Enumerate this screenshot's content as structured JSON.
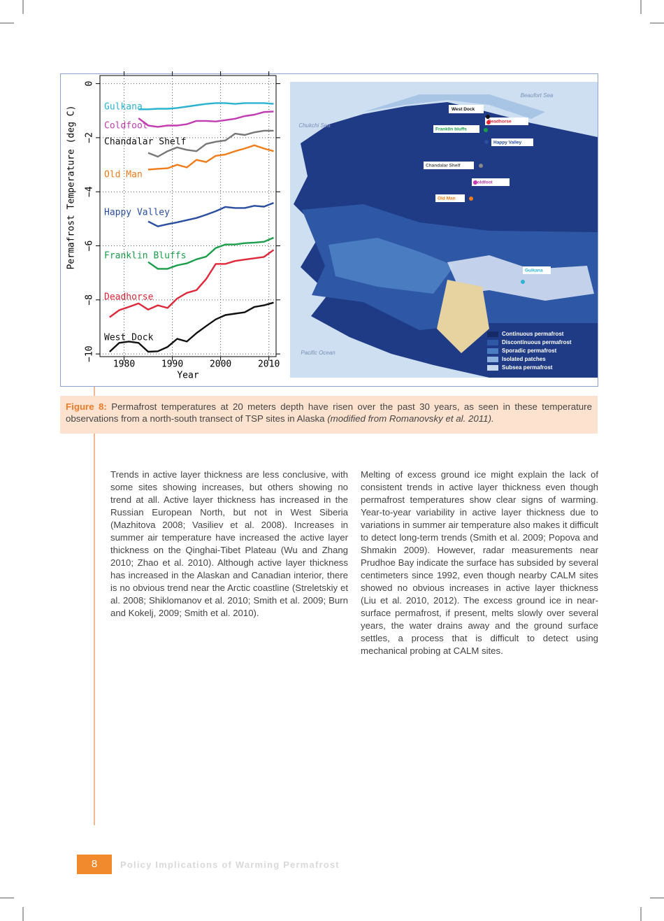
{
  "chart_data": {
    "type": "line",
    "ylabel": "Permafrost Temperature (deg C)",
    "xlabel": "Year",
    "x": [
      1977,
      1979,
      1981,
      1983,
      1985,
      1987,
      1989,
      1991,
      1993,
      1995,
      1997,
      1999,
      2001,
      2003,
      2005,
      2007,
      2009,
      2011
    ],
    "xlim": [
      1975,
      2011.5
    ],
    "xticks": [
      1980,
      1990,
      2000,
      2010
    ],
    "ylim": [
      -10.1,
      0.3
    ],
    "yticks": [
      {
        "value": -10,
        "label": "−10"
      },
      {
        "value": -8,
        "label": "−8"
      },
      {
        "value": -6,
        "label": "−6"
      },
      {
        "value": -4,
        "label": "−4"
      },
      {
        "value": -2,
        "label": "−2"
      },
      0
    ],
    "grid": true,
    "series": [
      {
        "name": "Gulkana",
        "color": "#2bb3d1",
        "values": [
          null,
          null,
          null,
          -0.95,
          -0.95,
          -0.93,
          -0.93,
          -0.9,
          -0.85,
          -0.8,
          -0.75,
          -0.72,
          -0.72,
          -0.75,
          -0.72,
          -0.72,
          -0.72,
          -0.75
        ]
      },
      {
        "name": "Coldfoot",
        "color": "#c23db1",
        "values": [
          null,
          null,
          null,
          -1.28,
          -1.55,
          -1.6,
          -1.55,
          -1.55,
          -1.5,
          -1.38,
          -1.38,
          -1.4,
          -1.35,
          -1.3,
          -1.2,
          -1.15,
          -1.05,
          -1.03
        ]
      },
      {
        "name": "Chandalar Shelf",
        "color": "#777777",
        "values": [
          null,
          null,
          null,
          null,
          -2.56,
          -2.7,
          -2.5,
          -2.36,
          -2.45,
          -2.5,
          -2.23,
          -2.15,
          -2.1,
          -1.85,
          -1.9,
          -1.8,
          -1.74,
          -1.74
        ]
      },
      {
        "name": "Old Man",
        "color": "#f07c1a",
        "values": [
          null,
          null,
          null,
          null,
          -3.18,
          -3.15,
          -3.13,
          -3.0,
          -3.1,
          -2.82,
          -2.9,
          -2.67,
          -2.62,
          -2.5,
          -2.4,
          -2.28,
          -2.4,
          -2.5
        ]
      },
      {
        "name": "Happy Valley",
        "color": "#2a4ea0",
        "values": [
          null,
          null,
          null,
          null,
          -5.1,
          -5.28,
          -5.2,
          -5.13,
          -5.05,
          -4.97,
          -4.85,
          -4.72,
          -4.56,
          -4.6,
          -4.6,
          -4.52,
          -4.55,
          -4.41
        ]
      },
      {
        "name": "Franklin Bluffs",
        "color": "#1a9e4a",
        "values": [
          null,
          null,
          null,
          null,
          -6.6,
          -6.85,
          -6.85,
          -6.72,
          -6.65,
          -6.5,
          -6.4,
          -6.08,
          -5.95,
          -5.95,
          -5.9,
          -5.88,
          -5.85,
          -5.7
        ]
      },
      {
        "name": "Deadhorse",
        "color": "#e0283a",
        "values": [
          -8.64,
          -8.38,
          -8.26,
          -8.13,
          -8.36,
          -8.2,
          -8.3,
          -7.95,
          -7.74,
          -7.64,
          -7.23,
          -6.67,
          -6.67,
          -6.56,
          -6.51,
          -6.46,
          -6.41,
          -6.15
        ]
      },
      {
        "name": "West Dock",
        "color": "#111111",
        "values": [
          -9.92,
          -9.59,
          -9.54,
          -9.59,
          -9.92,
          -9.9,
          -9.74,
          -9.44,
          -9.54,
          -9.23,
          -8.97,
          -8.72,
          -8.56,
          -8.51,
          -8.46,
          -8.26,
          -8.2,
          -8.1
        ]
      }
    ]
  },
  "map": {
    "seas": [
      "Beaufort Sea",
      "Chukchi Sea",
      "Pacific Ocean"
    ],
    "sites": [
      "West Dock",
      "Deadhorse",
      "Franklin bluffs",
      "Happy Valley",
      "Chandalar Shelf",
      "Coldfoot",
      "Old Man",
      "Gulkana"
    ],
    "legend": [
      "Continuous permafrost",
      "Discontinuous permafrost",
      "Sporadic permafrost",
      "Isolated patches",
      "Subsea permafrost"
    ]
  },
  "caption": {
    "label": "Figure 8:",
    "text": "Permafrost temperatures at 20 meters depth have risen over the past 30 years, as seen in these temperature observations from a north-south transect of TSP sites in Alaska",
    "source": "(modified from Romanovsky et al. 2011)."
  },
  "body": {
    "left": "Trends in active layer thickness are less conclusive, with some sites showing increases, but others showing no trend at all. Active layer thickness has increased in the Russian European North, but not in West Siberia (Mazhitova 2008; Vasiliev et al. 2008). Increases in summer air temperature have increased the active layer thickness on the Qinghai-Tibet Plateau (Wu and Zhang 2010; Zhao et al. 2010). Although active layer thickness has increased in the Alaskan and Canadian interior, there is no obvious trend near the Arctic coastline (Streletskiy et al. 2008; Shiklomanov et al. 2010; Smith et al. 2009; Burn and Kokelj, 2009; Smith et al. 2010).",
    "right": "Melting of excess ground ice might explain the lack of consistent trends in active layer thickness even though permafrost temperatures show clear signs of warming. Year-to-year variability in active layer thickness due to variations in summer air temperature also makes it difficult to detect long-term trends (Smith et al. 2009; Popova and Shmakin 2009). However, radar measurements near Prudhoe Bay indicate the surface has subsided by several centimeters since 1992, even though nearby CALM sites showed no obvious increases in active layer thickness (Liu et al. 2010, 2012). The excess ground ice in near-surface permafrost, if present, melts slowly over several years, the water drains away and the ground surface settles, a process that is difficult to detect using mechanical probing at CALM sites."
  },
  "footer": {
    "page": "8",
    "title": "Policy Implications of Warming Permafrost"
  }
}
